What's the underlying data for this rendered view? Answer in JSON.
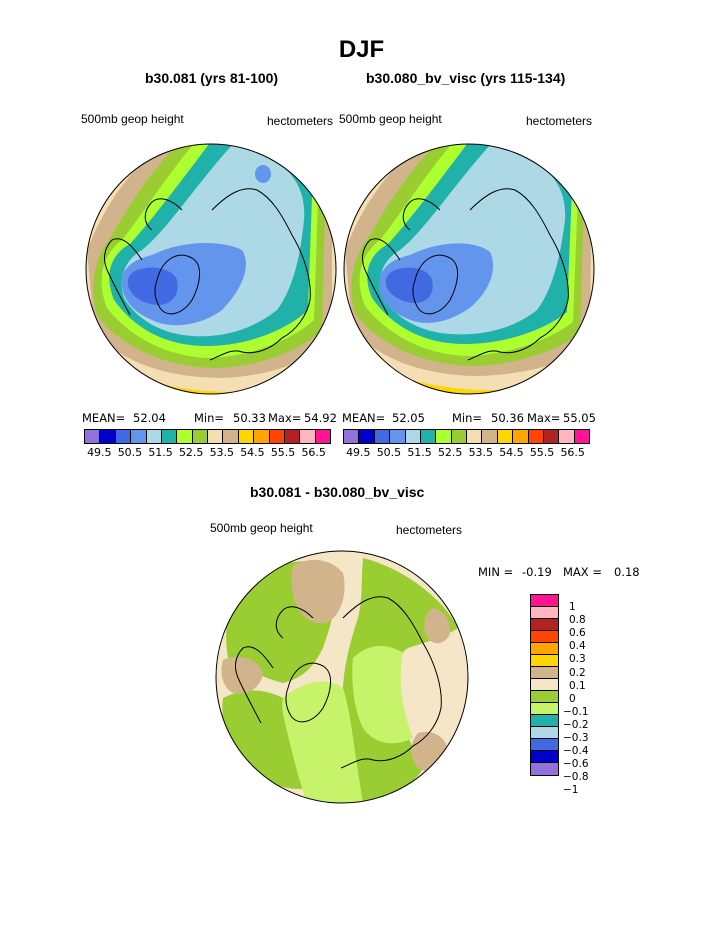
{
  "title": "DJF",
  "panels": [
    {
      "case": "b30.081 (yrs 81-100)",
      "variable": "500mb geop height",
      "units": "hectometers",
      "mean_label": "MEAN=",
      "mean": "52.04",
      "min_label": "Min=",
      "min": "50.33",
      "max_label": "Max=",
      "max": "54.92"
    },
    {
      "case": "b30.080_bv_visc (yrs 115-134)",
      "variable": "500mb geop height",
      "units": "hectometers",
      "mean_label": "MEAN=",
      "mean": "52.05",
      "min_label": "Min=",
      "min": "50.36",
      "max_label": "Max=",
      "max": "55.05"
    }
  ],
  "abs_colorbar": {
    "colors": [
      "#9370db",
      "#0000cd",
      "#4169e1",
      "#6495ed",
      "#add8e6",
      "#20b2aa",
      "#adff2f",
      "#9acd32",
      "#f5deb3",
      "#d2b48c",
      "#ffd700",
      "#ffa500",
      "#ff4500",
      "#b22222",
      "#ffb6c1",
      "#ff1493"
    ],
    "ticks": [
      "49.5",
      "50.5",
      "51.5",
      "52.5",
      "53.5",
      "54.5",
      "55.5",
      "56.5"
    ]
  },
  "diff": {
    "title": "b30.081 - b30.080_bv_visc",
    "variable": "500mb geop height",
    "units": "hectometers",
    "min_label": "MIN =",
    "min": "-0.19",
    "max_label": "MAX =",
    "max": "0.18",
    "colorbar": {
      "colors": [
        "#ff1493",
        "#ffb6c1",
        "#b22222",
        "#ff4500",
        "#ffa500",
        "#ffd700",
        "#d2b48c",
        "#f5e6c8",
        "#9acd32",
        "#c7f36b",
        "#20b2aa",
        "#add8e6",
        "#4169e1",
        "#0000cd",
        "#9370db"
      ],
      "ticks": [
        "1",
        "0.8",
        "0.6",
        "0.4",
        "0.3",
        "0.2",
        "0.1",
        "0",
        "−0.1",
        "−0.2",
        "−0.3",
        "−0.4",
        "−0.6",
        "−0.8",
        "−1"
      ]
    }
  },
  "map_colors": {
    "outer_yellow": "#ffd700",
    "orange": "#ffa500",
    "tan": "#d2b48c",
    "wheat": "#f5deb3",
    "yellowgreen": "#9acd32",
    "lightgreen": "#adff2f",
    "teal": "#20b2aa",
    "lightblue": "#add8e6",
    "cornflower": "#6495ed",
    "royal": "#4169e1",
    "diff_cream": "#f5e6c8",
    "diff_green": "#9acd32",
    "diff_lightgreen": "#c7f36b",
    "diff_tan": "#d2b48c"
  }
}
